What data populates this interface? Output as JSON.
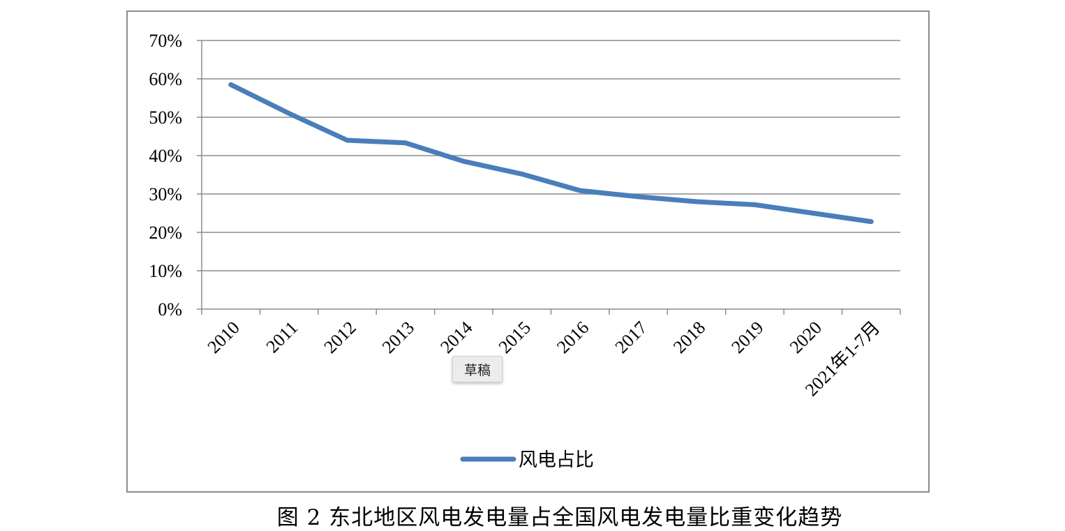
{
  "chart_data": {
    "type": "line",
    "categories": [
      "2010",
      "2011",
      "2012",
      "2013",
      "2014",
      "2015",
      "2016",
      "2017",
      "2018",
      "2019",
      "2020",
      "2021年1-7月"
    ],
    "series": [
      {
        "name": "风电占比",
        "values": [
          58.5,
          51,
          44,
          43.3,
          38.5,
          35.2,
          30.9,
          29.3,
          28,
          27.2,
          25,
          22.8
        ],
        "color": "#4a7ebb"
      }
    ],
    "ylim": [
      0,
      70
    ],
    "yticks": [
      "0%",
      "10%",
      "20%",
      "30%",
      "40%",
      "50%",
      "60%",
      "70%"
    ],
    "grid": true,
    "legend": "bottom",
    "xlabel": "",
    "ylabel": ""
  },
  "caption": "图 2  东北地区风电发电量占全国风电发电量比重变化趋势",
  "draft_tag": "草稿"
}
